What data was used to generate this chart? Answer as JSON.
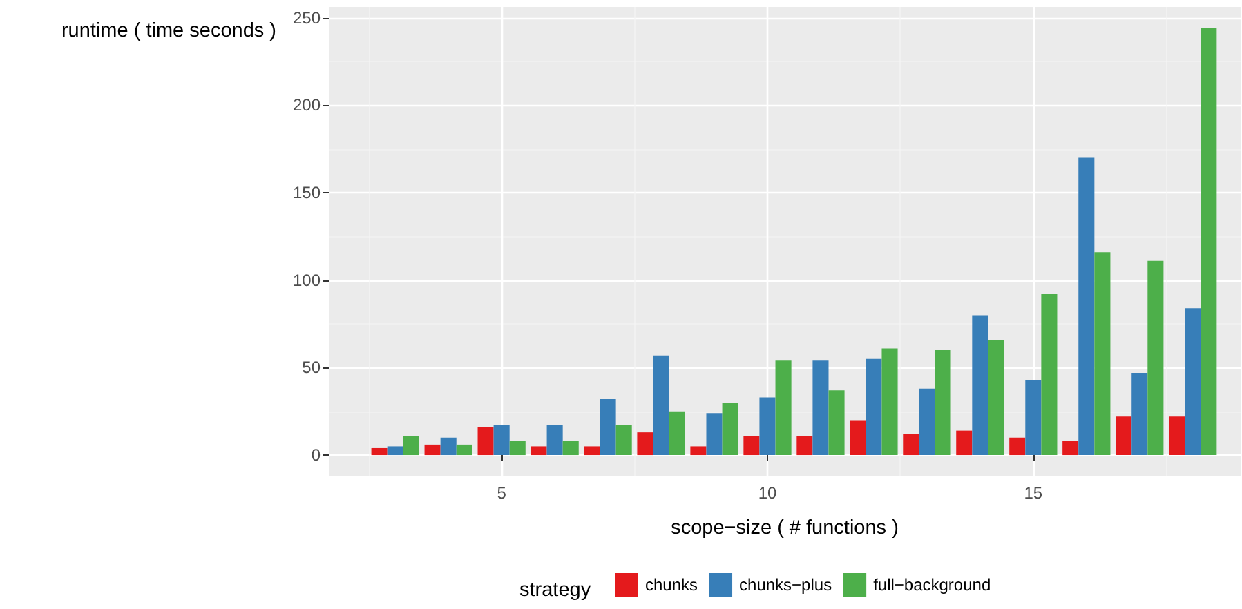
{
  "chart_data": {
    "type": "bar",
    "xlabel": "scope−size ( # functions )",
    "ylabel": "runtime ( time seconds )",
    "legend_title": "strategy",
    "x": [
      3,
      4,
      5,
      6,
      7,
      8,
      9,
      10,
      11,
      12,
      13,
      14,
      15,
      16,
      17,
      18
    ],
    "series": [
      {
        "name": "chunks",
        "color": "#e41a1c",
        "values": [
          4,
          6,
          16,
          5,
          5,
          13,
          5,
          11,
          11,
          20,
          12,
          14,
          10,
          8,
          22,
          22
        ]
      },
      {
        "name": "chunks−plus",
        "color": "#377eb8",
        "values": [
          5,
          10,
          17,
          17,
          32,
          57,
          24,
          33,
          54,
          55,
          38,
          80,
          43,
          170,
          47,
          84
        ]
      },
      {
        "name": "full−background",
        "color": "#4daf4a",
        "values": [
          11,
          6,
          8,
          8,
          17,
          25,
          30,
          54,
          37,
          61,
          60,
          66,
          92,
          116,
          111,
          244
        ]
      }
    ],
    "xlim": [
      1.75,
      18.9
    ],
    "xticks": [
      5,
      10,
      15
    ],
    "ylim": [
      -12.2,
      256.2
    ],
    "yticks": [
      0,
      50,
      100,
      150,
      200,
      250
    ],
    "grid": true,
    "legend": "bottom"
  }
}
